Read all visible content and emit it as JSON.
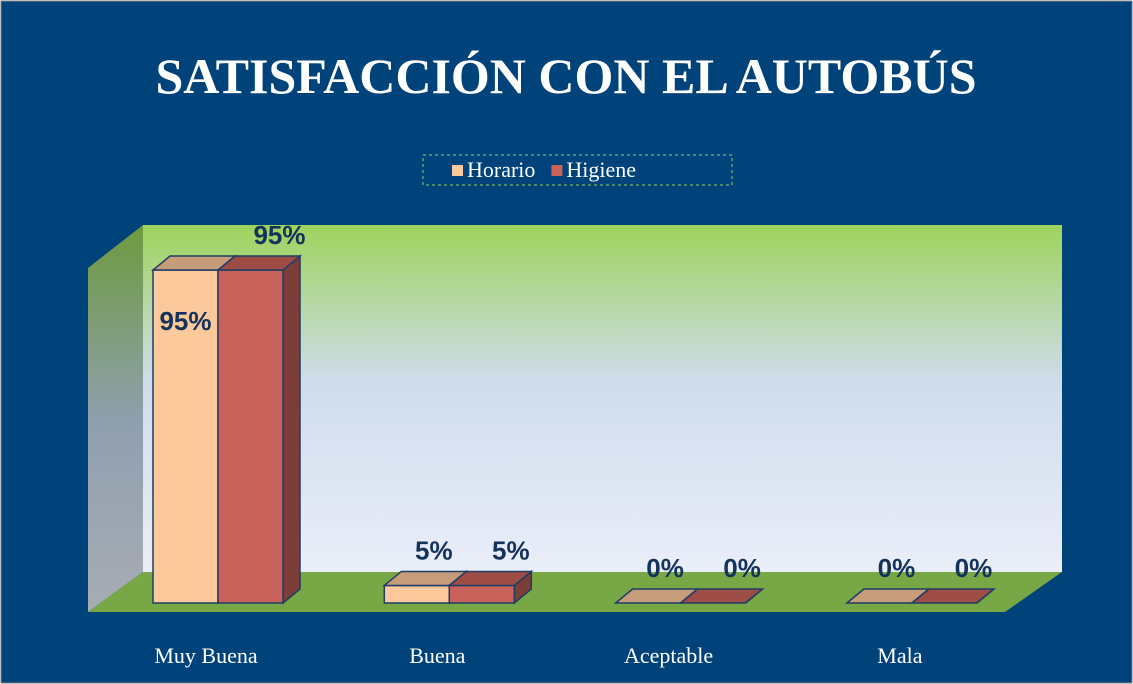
{
  "chart_data": {
    "type": "bar3d",
    "title": "SATISFACCIÓN CON EL AUTOBÚS",
    "categories": [
      "Muy Buena",
      "Buena",
      "Aceptable",
      "Mala"
    ],
    "series": [
      {
        "name": "Horario",
        "color": "#fcc99c",
        "values": [
          95,
          5,
          0,
          0
        ],
        "value_labels": [
          "95%",
          "5%",
          "0%",
          "0%"
        ]
      },
      {
        "name": "Higiene",
        "color": "#c9625a",
        "values": [
          95,
          5,
          0,
          0
        ],
        "value_labels": [
          "95%",
          "5%",
          "0%",
          "0%"
        ]
      }
    ],
    "ylim": [
      0,
      100
    ],
    "legend": "top"
  }
}
